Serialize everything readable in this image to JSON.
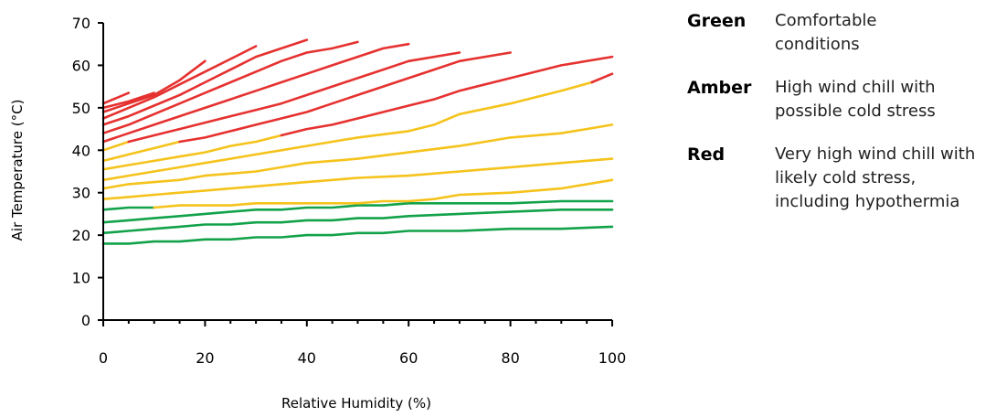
{
  "chart_data": {
    "type": "line",
    "xlabel": "Relative Humidity (%)",
    "ylabel": "Air Temperature (°C)",
    "xlim": [
      0,
      100
    ],
    "ylim": [
      0,
      70
    ],
    "xticks": [
      0,
      20,
      40,
      60,
      80,
      100
    ],
    "yticks": [
      0,
      10,
      20,
      30,
      40,
      50,
      60,
      70
    ],
    "grid": false,
    "colors": {
      "green": "#12a24a",
      "amber": "#f5c31b",
      "red": "#e5312f"
    },
    "series": [
      {
        "points": [
          [
            0,
            18
          ],
          [
            5,
            18
          ],
          [
            10,
            18.5
          ],
          [
            15,
            18.5
          ],
          [
            20,
            19
          ],
          [
            25,
            19
          ],
          [
            30,
            19.5
          ],
          [
            35,
            19.5
          ],
          [
            40,
            20
          ],
          [
            45,
            20
          ],
          [
            50,
            20.5
          ],
          [
            55,
            20.5
          ],
          [
            60,
            21
          ],
          [
            70,
            21
          ],
          [
            80,
            21.5
          ],
          [
            90,
            21.5
          ],
          [
            100,
            22
          ]
        ],
        "segments": [
          {
            "from": 0,
            "to": 100,
            "level": "green"
          }
        ]
      },
      {
        "points": [
          [
            0,
            20.5
          ],
          [
            5,
            21
          ],
          [
            10,
            21.5
          ],
          [
            15,
            22
          ],
          [
            20,
            22.5
          ],
          [
            25,
            22.5
          ],
          [
            30,
            23
          ],
          [
            35,
            23
          ],
          [
            40,
            23.5
          ],
          [
            45,
            23.5
          ],
          [
            50,
            24
          ],
          [
            55,
            24
          ],
          [
            60,
            24.5
          ],
          [
            70,
            25
          ],
          [
            80,
            25.5
          ],
          [
            90,
            26
          ],
          [
            100,
            26
          ]
        ],
        "segments": [
          {
            "from": 0,
            "to": 100,
            "level": "green"
          }
        ]
      },
      {
        "points": [
          [
            0,
            23
          ],
          [
            5,
            23.5
          ],
          [
            10,
            24
          ],
          [
            15,
            24.5
          ],
          [
            20,
            25
          ],
          [
            25,
            25.5
          ],
          [
            30,
            26
          ],
          [
            35,
            26
          ],
          [
            40,
            26.5
          ],
          [
            45,
            26.5
          ],
          [
            50,
            27
          ],
          [
            55,
            27
          ],
          [
            60,
            27.5
          ],
          [
            70,
            27.5
          ],
          [
            80,
            27.5
          ],
          [
            90,
            28
          ],
          [
            100,
            28
          ]
        ],
        "segments": [
          {
            "from": 0,
            "to": 100,
            "level": "green"
          }
        ]
      },
      {
        "points": [
          [
            0,
            26
          ],
          [
            5,
            26.5
          ],
          [
            10,
            26.5
          ],
          [
            15,
            27
          ],
          [
            20,
            27
          ],
          [
            25,
            27
          ],
          [
            30,
            27.5
          ],
          [
            35,
            27.5
          ],
          [
            40,
            27.5
          ],
          [
            45,
            27.5
          ],
          [
            50,
            27.5
          ],
          [
            55,
            28
          ],
          [
            60,
            28
          ],
          [
            65,
            28.5
          ],
          [
            70,
            29.5
          ],
          [
            80,
            30
          ],
          [
            90,
            31
          ],
          [
            100,
            33
          ]
        ],
        "segments": [
          {
            "from": 0,
            "to": 10,
            "level": "green"
          },
          {
            "from": 10,
            "to": 100,
            "level": "amber"
          }
        ]
      },
      {
        "points": [
          [
            0,
            28.5
          ],
          [
            5,
            29
          ],
          [
            10,
            29.5
          ],
          [
            15,
            30
          ],
          [
            20,
            30.5
          ],
          [
            25,
            31
          ],
          [
            30,
            31.5
          ],
          [
            35,
            32
          ],
          [
            40,
            32.5
          ],
          [
            45,
            33
          ],
          [
            50,
            33.5
          ],
          [
            60,
            34
          ],
          [
            70,
            35
          ],
          [
            80,
            36
          ],
          [
            90,
            37
          ],
          [
            100,
            38
          ]
        ],
        "segments": [
          {
            "from": 0,
            "to": 100,
            "level": "amber"
          }
        ]
      },
      {
        "points": [
          [
            0,
            31
          ],
          [
            5,
            32
          ],
          [
            10,
            32.5
          ],
          [
            15,
            33
          ],
          [
            20,
            34
          ],
          [
            25,
            34.5
          ],
          [
            30,
            35
          ],
          [
            35,
            36
          ],
          [
            40,
            37
          ],
          [
            45,
            37.5
          ],
          [
            50,
            38
          ],
          [
            60,
            39.5
          ],
          [
            70,
            41
          ],
          [
            80,
            43
          ],
          [
            90,
            44
          ],
          [
            95,
            45
          ],
          [
            100,
            46
          ]
        ],
        "segments": [
          {
            "from": 0,
            "to": 100,
            "level": "amber"
          }
        ]
      },
      {
        "points": [
          [
            0,
            33
          ],
          [
            5,
            34
          ],
          [
            10,
            35
          ],
          [
            15,
            36
          ],
          [
            20,
            37
          ],
          [
            25,
            38
          ],
          [
            30,
            39
          ],
          [
            35,
            40
          ],
          [
            40,
            41
          ],
          [
            45,
            42
          ],
          [
            50,
            43
          ],
          [
            60,
            44.5
          ],
          [
            65,
            46
          ],
          [
            70,
            48.5
          ],
          [
            80,
            51
          ],
          [
            90,
            54
          ],
          [
            96,
            56
          ],
          [
            100,
            58
          ]
        ],
        "segments": [
          {
            "from": 0,
            "to": 96,
            "level": "amber"
          },
          {
            "from": 96,
            "to": 100,
            "level": "red"
          }
        ]
      },
      {
        "points": [
          [
            0,
            35.5
          ],
          [
            5,
            36.5
          ],
          [
            10,
            37.5
          ],
          [
            15,
            38.5
          ],
          [
            20,
            39.5
          ],
          [
            25,
            41
          ],
          [
            30,
            42
          ],
          [
            35,
            43.5
          ],
          [
            40,
            45
          ],
          [
            45,
            46
          ],
          [
            50,
            47.5
          ],
          [
            55,
            49
          ],
          [
            60,
            50.5
          ],
          [
            65,
            52
          ],
          [
            70,
            54
          ],
          [
            80,
            57
          ],
          [
            90,
            60
          ],
          [
            100,
            62
          ]
        ],
        "segments": [
          {
            "from": 0,
            "to": 35,
            "level": "amber"
          },
          {
            "from": 35,
            "to": 100,
            "level": "red"
          }
        ]
      },
      {
        "points": [
          [
            0,
            37.5
          ],
          [
            5,
            39
          ],
          [
            10,
            40.5
          ],
          [
            15,
            42
          ],
          [
            20,
            43
          ],
          [
            25,
            44.5
          ],
          [
            30,
            46
          ],
          [
            35,
            47.5
          ],
          [
            40,
            49
          ],
          [
            45,
            51
          ],
          [
            50,
            53
          ],
          [
            55,
            55
          ],
          [
            60,
            57
          ],
          [
            65,
            59
          ],
          [
            70,
            61
          ],
          [
            80,
            63
          ]
        ],
        "segments": [
          {
            "from": 0,
            "to": 15,
            "level": "amber"
          },
          {
            "from": 15,
            "to": 80,
            "level": "red"
          }
        ]
      },
      {
        "points": [
          [
            0,
            40
          ],
          [
            5,
            42
          ],
          [
            10,
            43.5
          ],
          [
            15,
            45
          ],
          [
            20,
            46.5
          ],
          [
            25,
            48
          ],
          [
            30,
            49.5
          ],
          [
            35,
            51
          ],
          [
            40,
            53
          ],
          [
            45,
            55
          ],
          [
            50,
            57
          ],
          [
            55,
            59
          ],
          [
            60,
            61
          ],
          [
            70,
            63
          ]
        ],
        "segments": [
          {
            "from": 0,
            "to": 5,
            "level": "amber"
          },
          {
            "from": 5,
            "to": 70,
            "level": "red"
          }
        ]
      },
      {
        "points": [
          [
            0,
            42
          ],
          [
            5,
            44
          ],
          [
            10,
            46
          ],
          [
            15,
            48
          ],
          [
            20,
            50
          ],
          [
            25,
            52
          ],
          [
            30,
            54
          ],
          [
            35,
            56
          ],
          [
            40,
            58
          ],
          [
            45,
            60
          ],
          [
            50,
            62
          ],
          [
            55,
            64
          ],
          [
            60,
            65
          ]
        ],
        "segments": [
          {
            "from": 0,
            "to": 60,
            "level": "red"
          }
        ]
      },
      {
        "points": [
          [
            0,
            44
          ],
          [
            5,
            46
          ],
          [
            10,
            48.5
          ],
          [
            15,
            51
          ],
          [
            20,
            53.5
          ],
          [
            25,
            56
          ],
          [
            30,
            58.5
          ],
          [
            35,
            61
          ],
          [
            40,
            63
          ],
          [
            45,
            64
          ],
          [
            50,
            65.5
          ]
        ],
        "segments": [
          {
            "from": 0,
            "to": 50,
            "level": "red"
          }
        ]
      },
      {
        "points": [
          [
            0,
            46
          ],
          [
            5,
            48
          ],
          [
            10,
            50.5
          ],
          [
            15,
            53
          ],
          [
            20,
            56
          ],
          [
            25,
            59
          ],
          [
            30,
            62
          ],
          [
            35,
            64
          ],
          [
            40,
            66
          ]
        ],
        "segments": [
          {
            "from": 0,
            "to": 40,
            "level": "red"
          }
        ]
      },
      {
        "points": [
          [
            0,
            47.5
          ],
          [
            5,
            50
          ],
          [
            10,
            52.5
          ],
          [
            15,
            55.5
          ],
          [
            20,
            58.5
          ],
          [
            25,
            61.5
          ],
          [
            30,
            64.5
          ]
        ],
        "segments": [
          {
            "from": 0,
            "to": 30,
            "level": "red"
          }
        ]
      },
      {
        "points": [
          [
            0,
            49
          ],
          [
            5,
            51
          ],
          [
            10,
            53
          ],
          [
            15,
            56.5
          ],
          [
            20,
            61
          ]
        ],
        "segments": [
          {
            "from": 0,
            "to": 20,
            "level": "red"
          }
        ]
      },
      {
        "points": [
          [
            0,
            50
          ],
          [
            5,
            51.5
          ],
          [
            10,
            53.5
          ]
        ],
        "segments": [
          {
            "from": 0,
            "to": 10,
            "level": "red"
          }
        ]
      },
      {
        "points": [
          [
            0,
            51
          ],
          [
            5,
            53.5
          ]
        ],
        "segments": [
          {
            "from": 0,
            "to": 5,
            "level": "red"
          }
        ]
      }
    ]
  },
  "legend": [
    {
      "key": "Green",
      "desc": "Comfortable conditions"
    },
    {
      "key": "Amber",
      "desc": "High wind chill with possible cold stress"
    },
    {
      "key": "Red",
      "desc": "Very high wind chill with likely cold stress, including hypothermia"
    }
  ]
}
